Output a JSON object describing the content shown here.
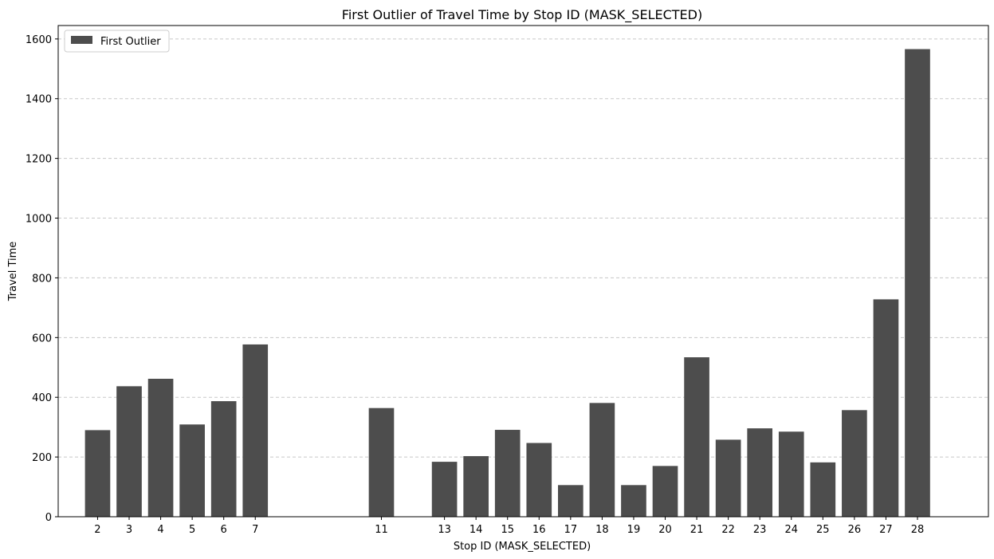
{
  "chart_data": {
    "type": "bar",
    "title": "First Outlier of Travel Time by Stop ID (MASK_SELECTED)",
    "xlabel": "Stop ID (MASK_SELECTED)",
    "ylabel": "Travel Time",
    "x": [
      2,
      3,
      4,
      5,
      6,
      7,
      11,
      13,
      14,
      15,
      16,
      17,
      18,
      19,
      20,
      21,
      22,
      23,
      24,
      25,
      26,
      27,
      28
    ],
    "series": [
      {
        "name": "First Outlier",
        "values": [
          290,
          437,
          462,
          309,
          387,
          577,
          364,
          184,
          203,
          291,
          247,
          106,
          381,
          106,
          170,
          534,
          258,
          296,
          285,
          182,
          357,
          728,
          1566
        ]
      }
    ],
    "xlim": [
      0.75,
      30.25
    ],
    "ylim": [
      0,
      1645
    ],
    "yticks": [
      0,
      200,
      400,
      600,
      800,
      1000,
      1200,
      1400,
      1600
    ],
    "grid": "y-dashed",
    "legend_position": "top-left",
    "colors": {
      "bar": "#4d4d4d",
      "grid": "#c8c8c8",
      "axis": "#000000"
    }
  }
}
